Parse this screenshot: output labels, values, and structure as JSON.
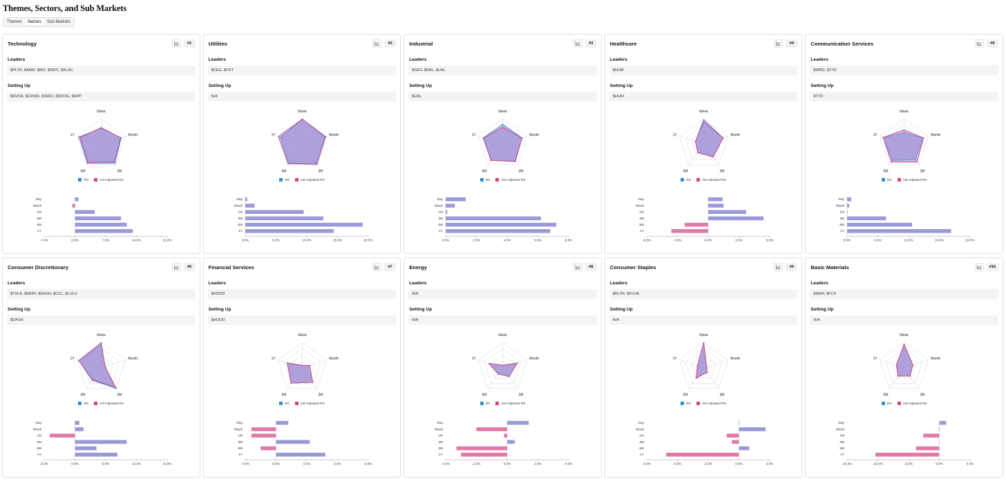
{
  "page": {
    "title": "Themes, Sectors, and Sub Markets",
    "tabs": [
      {
        "label": "Themes",
        "active": false
      },
      {
        "label": "Sectors",
        "active": true
      },
      {
        "label": "Sub Markets",
        "active": false
      }
    ]
  },
  "labels": {
    "leaders": "Leaders",
    "setting_up": "Setting Up",
    "legend_rs": "RS",
    "legend_vol": "Vol-Adjusted RS",
    "periods": [
      "Day",
      "Week",
      "1M",
      "3M",
      "6M",
      "1Y"
    ],
    "radar_axes": [
      "Week",
      "Month",
      "3M",
      "6M",
      "1Y"
    ]
  },
  "colors": {
    "rs": "#2f8fd6",
    "vol": "#d8407e",
    "fill": "#9a8bd4",
    "bar_pos": "#9b9ad8",
    "bar_neg": "#e27aa9"
  },
  "cards": [
    {
      "name": "Technology",
      "rank": "#1",
      "leaders": "$PLTR, $AMD, $MU, $WDC, $KLAC",
      "setting_up": "$NVDA, $CRWD, $SMCI, $DDOG, $APP",
      "radar": {
        "rs": [
          0.62,
          0.82,
          0.92,
          0.92,
          0.92
        ],
        "vol": [
          0.65,
          0.8,
          0.86,
          0.88,
          0.86
        ]
      },
      "chart_data": {
        "type": "bar",
        "categories": [
          "Day",
          "Week",
          "1M",
          "3M",
          "6M",
          "1Y"
        ],
        "values": [
          0.8,
          -0.6,
          4.5,
          10.5,
          11.8,
          13.2
        ],
        "ticks": [
          -7,
          0,
          7,
          14,
          21
        ],
        "tick_labels": [
          "-7.0%",
          "0.0%",
          "7.0%",
          "14.0%",
          "21.0%"
        ]
      }
    },
    {
      "name": "Utilities",
      "rank": "#2",
      "leaders": "$CEG, $VST",
      "setting_up": "N/A",
      "radar": {
        "rs": [
          0.98,
          0.92,
          0.92,
          0.92,
          0.88
        ],
        "vol": [
          0.98,
          0.96,
          0.98,
          0.94,
          0.98
        ]
      },
      "chart_data": {
        "type": "bar",
        "categories": [
          "Day",
          "Week",
          "1M",
          "3M",
          "6M",
          "1Y"
        ],
        "values": [
          0.3,
          1.5,
          9.5,
          12.7,
          19.1,
          14.4
        ],
        "ticks": [
          0,
          5,
          10,
          15,
          20
        ],
        "tick_labels": [
          "0.0%",
          "5.0%",
          "10.0%",
          "15.0%",
          "20.0%"
        ]
      }
    },
    {
      "name": "Industrial",
      "rank": "#3",
      "leaders": "$GEV, $DAL, $UAL",
      "setting_up": "$UAL",
      "radar": {
        "rs": [
          0.78,
          0.8,
          0.82,
          0.78,
          0.8
        ],
        "vol": [
          0.66,
          0.8,
          0.84,
          0.78,
          0.78
        ]
      },
      "chart_data": {
        "type": "bar",
        "categories": [
          "Day",
          "Week",
          "1M",
          "3M",
          "6M",
          "1Y"
        ],
        "values": [
          1.3,
          0.6,
          0.1,
          6.2,
          7.2,
          6.8
        ],
        "ticks": [
          0,
          2,
          4,
          6,
          8
        ],
        "tick_labels": [
          "0.0%",
          "2.0%",
          "4.0%",
          "6.0%",
          "8.0%"
        ]
      }
    },
    {
      "name": "Healthcare",
      "rank": "#4",
      "leaders": "$HUM",
      "setting_up": "$HUM",
      "radar": {
        "rs": [
          0.96,
          0.8,
          0.62,
          0.4,
          0.34
        ],
        "vol": [
          0.88,
          0.8,
          0.62,
          0.4,
          0.34
        ]
      },
      "chart_data": {
        "type": "bar",
        "categories": [
          "Day",
          "Week",
          "1M",
          "3M",
          "6M",
          "1Y"
        ],
        "values": [
          1.4,
          1.5,
          3.7,
          5.4,
          -2.3,
          -3.6
        ],
        "ticks": [
          -6,
          -3,
          0,
          3,
          6
        ],
        "tick_labels": [
          "-6.0%",
          "-3.0%",
          "0.0%",
          "3.0%",
          "6.0%"
        ]
      }
    },
    {
      "name": "Communication Services",
      "rank": "#5",
      "leaders": "$WBD, $TTD",
      "setting_up": "$TTD",
      "radar": {
        "rs": [
          0.44,
          0.8,
          0.74,
          0.78,
          0.86
        ],
        "vol": [
          0.56,
          0.8,
          0.86,
          0.86,
          0.86
        ]
      },
      "chart_data": {
        "type": "bar",
        "categories": [
          "Day",
          "Week",
          "1M",
          "3M",
          "6M",
          "1Y"
        ],
        "values": [
          0.8,
          0.4,
          0.1,
          7.6,
          12.7,
          20.3
        ],
        "ticks": [
          0,
          6,
          12,
          18,
          24
        ],
        "tick_labels": [
          "0.0%",
          "6.0%",
          "12.0%",
          "18.0%",
          "24.0%"
        ]
      }
    },
    {
      "name": "Consumer Discretionary",
      "rank": "#6",
      "leaders": "$TSLA, $EBAY, $DASH, $CCL, $LULU",
      "setting_up": "$DASH",
      "radar": {
        "rs": [
          0.9,
          0.16,
          1.0,
          0.6,
          0.92
        ],
        "vol": [
          0.98,
          0.16,
          0.92,
          0.58,
          0.92
        ]
      },
      "chart_data": {
        "type": "bar",
        "categories": [
          "Day",
          "Week",
          "1M",
          "3M",
          "6M",
          "1Y"
        ],
        "values": [
          0.7,
          1.4,
          -4.1,
          8.4,
          3.5,
          6.9
        ],
        "ticks": [
          -5,
          0,
          5,
          10,
          15
        ],
        "tick_labels": [
          "-5.0%",
          "0.0%",
          "5.0%",
          "10.0%",
          "15.0%"
        ]
      }
    },
    {
      "name": "Financial Services",
      "rank": "#7",
      "leaders": "$HOOD",
      "setting_up": "$HOOD",
      "radar": {
        "rs": [
          0.1,
          0.3,
          0.7,
          0.74,
          0.62
        ],
        "vol": [
          0.1,
          0.3,
          0.7,
          0.74,
          0.62
        ]
      },
      "chart_data": {
        "type": "bar",
        "categories": [
          "Day",
          "Week",
          "1M",
          "3M",
          "6M",
          "1Y"
        ],
        "values": [
          1.2,
          -2.4,
          -2.4,
          3.3,
          -1.5,
          4.8
        ],
        "ticks": [
          -3,
          0,
          3,
          6,
          9
        ],
        "tick_labels": [
          "-3.0%",
          "0.0%",
          "3.0%",
          "6.0%",
          "9.0%"
        ]
      }
    },
    {
      "name": "Energy",
      "rank": "#8",
      "leaders": "N/A",
      "setting_up": "N/A",
      "radar": {
        "rs": [
          0.1,
          0.6,
          0.42,
          0.3,
          0.56
        ],
        "vol": [
          0.1,
          0.6,
          0.42,
          0.3,
          0.56
        ]
      },
      "chart_data": {
        "type": "bar",
        "categories": [
          "Day",
          "Week",
          "1M",
          "3M",
          "6M",
          "1Y"
        ],
        "values": [
          1.4,
          -2.0,
          -0.2,
          0.5,
          -3.3,
          -3.0
        ],
        "ticks": [
          -4,
          -2,
          0,
          2,
          4
        ],
        "tick_labels": [
          "-4.0%",
          "-2.0%",
          "0.0%",
          "2.0%",
          "4.0%"
        ]
      }
    },
    {
      "name": "Consumer Staples",
      "rank": "#9",
      "leaders": "$DLTR, $KVUE",
      "setting_up": "N/A",
      "radar": {
        "rs": [
          0.98,
          0.12,
          0.22,
          0.5,
          0.26
        ],
        "vol": [
          0.98,
          0.12,
          0.22,
          0.5,
          0.26
        ]
      },
      "chart_data": {
        "type": "bar",
        "categories": [
          "Day",
          "Week",
          "1M",
          "3M",
          "6M",
          "1Y"
        ],
        "values": [
          0.05,
          2.6,
          -1.2,
          -0.7,
          1.0,
          -7.1
        ],
        "ticks": [
          -9,
          -6,
          -3,
          0,
          3
        ],
        "tick_labels": [
          "-9.0%",
          "-6.0%",
          "-3.0%",
          "0.0%",
          "3.0%"
        ]
      }
    },
    {
      "name": "Basic Materials",
      "rank": "#10",
      "leaders": "$NEM, $FCX",
      "setting_up": "N/A",
      "radar": {
        "rs": [
          0.92,
          0.36,
          0.4,
          0.4,
          0.32
        ],
        "vol": [
          0.92,
          0.36,
          0.4,
          0.4,
          0.32
        ]
      },
      "chart_data": {
        "type": "bar",
        "categories": [
          "Day",
          "Week",
          "1M",
          "3M",
          "6M",
          "1Y"
        ],
        "values": [
          1.1,
          -0.1,
          -2.6,
          0.0,
          -3.8,
          -10.4
        ],
        "ticks": [
          -15,
          -10,
          -5,
          0,
          5
        ],
        "tick_labels": [
          "-15.0%",
          "-10.0%",
          "-5.0%",
          "0.0%",
          "5.0%"
        ]
      }
    }
  ]
}
